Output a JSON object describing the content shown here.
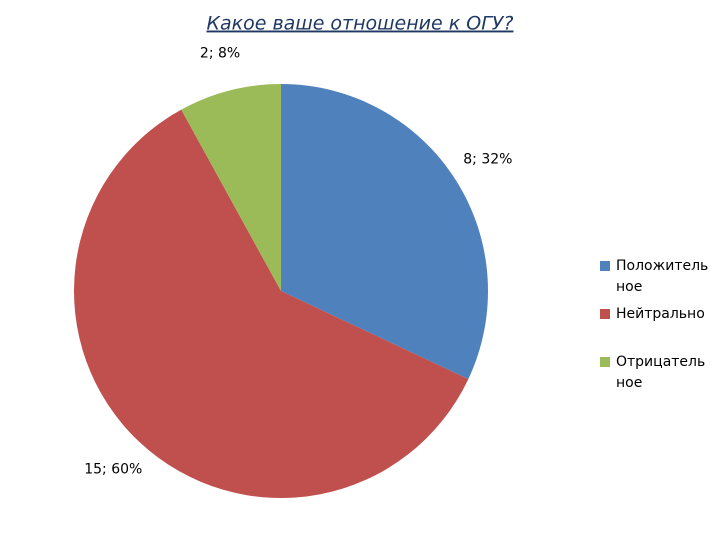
{
  "chart_data": {
    "type": "pie",
    "title": "Какое ваше отношение к ОГУ?",
    "categories": [
      "Положительное",
      "Нейтрально",
      "Отрицательное"
    ],
    "values": [
      8,
      15,
      2
    ],
    "value_labels": [
      "8; 32%",
      "15; 60%",
      "2; 8%"
    ],
    "colors": [
      "#4f81bd",
      "#c0504d",
      "#9bbb59"
    ],
    "legend": "right"
  }
}
